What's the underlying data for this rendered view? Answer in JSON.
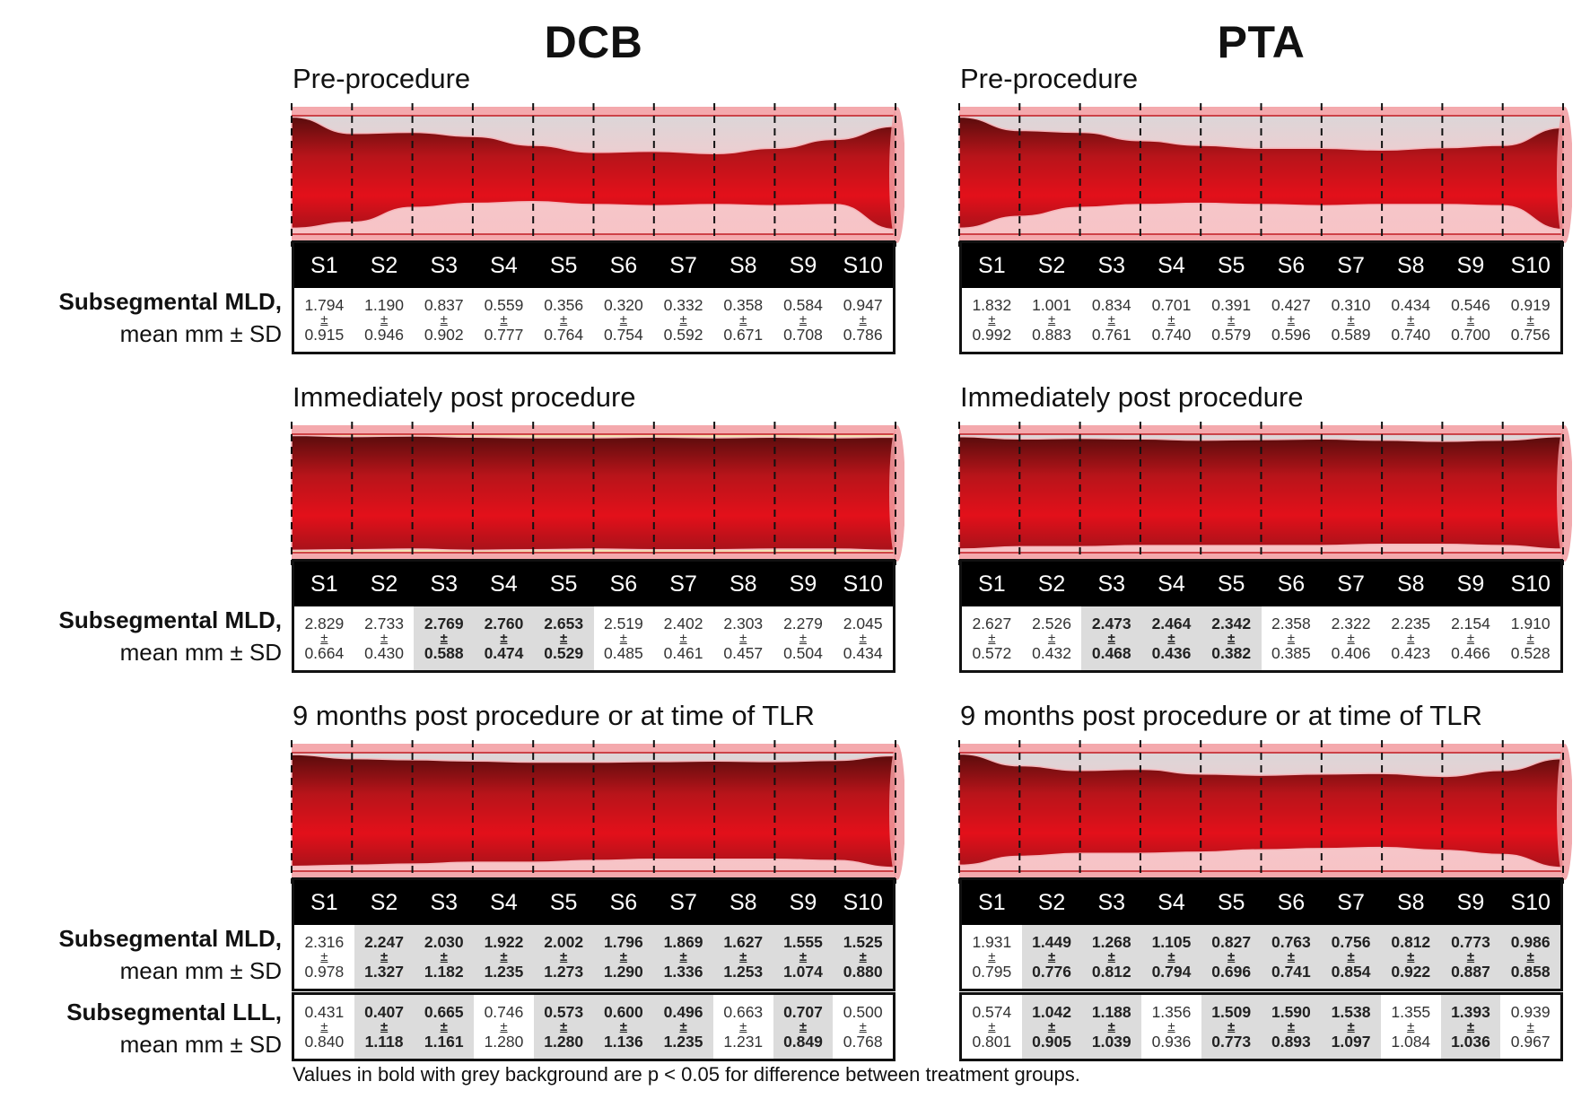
{
  "groups": [
    {
      "title": "DCB"
    },
    {
      "title": "PTA"
    }
  ],
  "stages": [
    {
      "title": "Pre-procedure"
    },
    {
      "title": "Immediately post procedure"
    },
    {
      "title": "9 months post procedure or at time of TLR"
    }
  ],
  "segments": [
    "S1",
    "S2",
    "S3",
    "S4",
    "S5",
    "S6",
    "S7",
    "S8",
    "S9",
    "S10"
  ],
  "pm_symbol": "±",
  "row_labels": {
    "mld": {
      "line1": "Subsegmental MLD,",
      "line2": "mean mm ± SD"
    },
    "lll": {
      "line1": "Subsegmental LLL,",
      "line2": "mean mm ± SD"
    }
  },
  "tables": {
    "DCB": {
      "pre_mld": [
        {
          "mean": "1.794",
          "sd": "0.915",
          "sig": false
        },
        {
          "mean": "1.190",
          "sd": "0.946",
          "sig": false
        },
        {
          "mean": "0.837",
          "sd": "0.902",
          "sig": false
        },
        {
          "mean": "0.559",
          "sd": "0.777",
          "sig": false
        },
        {
          "mean": "0.356",
          "sd": "0.764",
          "sig": false
        },
        {
          "mean": "0.320",
          "sd": "0.754",
          "sig": false
        },
        {
          "mean": "0.332",
          "sd": "0.592",
          "sig": false
        },
        {
          "mean": "0.358",
          "sd": "0.671",
          "sig": false
        },
        {
          "mean": "0.584",
          "sd": "0.708",
          "sig": false
        },
        {
          "mean": "0.947",
          "sd": "0.786",
          "sig": false
        }
      ],
      "post_mld": [
        {
          "mean": "2.829",
          "sd": "0.664",
          "sig": false
        },
        {
          "mean": "2.733",
          "sd": "0.430",
          "sig": false
        },
        {
          "mean": "2.769",
          "sd": "0.588",
          "sig": true
        },
        {
          "mean": "2.760",
          "sd": "0.474",
          "sig": true
        },
        {
          "mean": "2.653",
          "sd": "0.529",
          "sig": true
        },
        {
          "mean": "2.519",
          "sd": "0.485",
          "sig": false
        },
        {
          "mean": "2.402",
          "sd": "0.461",
          "sig": false
        },
        {
          "mean": "2.303",
          "sd": "0.457",
          "sig": false
        },
        {
          "mean": "2.279",
          "sd": "0.504",
          "sig": false
        },
        {
          "mean": "2.045",
          "sd": "0.434",
          "sig": false
        }
      ],
      "nine_mld": [
        {
          "mean": "2.316",
          "sd": "0.978",
          "sig": false
        },
        {
          "mean": "2.247",
          "sd": "1.327",
          "sig": true
        },
        {
          "mean": "2.030",
          "sd": "1.182",
          "sig": true
        },
        {
          "mean": "1.922",
          "sd": "1.235",
          "sig": true
        },
        {
          "mean": "2.002",
          "sd": "1.273",
          "sig": true
        },
        {
          "mean": "1.796",
          "sd": "1.290",
          "sig": true
        },
        {
          "mean": "1.869",
          "sd": "1.336",
          "sig": true
        },
        {
          "mean": "1.627",
          "sd": "1.253",
          "sig": true
        },
        {
          "mean": "1.555",
          "sd": "1.074",
          "sig": true
        },
        {
          "mean": "1.525",
          "sd": "0.880",
          "sig": true
        }
      ],
      "nine_lll": [
        {
          "mean": "0.431",
          "sd": "0.840",
          "sig": false
        },
        {
          "mean": "0.407",
          "sd": "1.118",
          "sig": true
        },
        {
          "mean": "0.665",
          "sd": "1.161",
          "sig": true
        },
        {
          "mean": "0.746",
          "sd": "1.280",
          "sig": false
        },
        {
          "mean": "0.573",
          "sd": "1.280",
          "sig": true
        },
        {
          "mean": "0.600",
          "sd": "1.136",
          "sig": true
        },
        {
          "mean": "0.496",
          "sd": "1.235",
          "sig": true
        },
        {
          "mean": "0.663",
          "sd": "1.231",
          "sig": false
        },
        {
          "mean": "0.707",
          "sd": "0.849",
          "sig": true
        },
        {
          "mean": "0.500",
          "sd": "0.768",
          "sig": false
        }
      ]
    },
    "PTA": {
      "pre_mld": [
        {
          "mean": "1.832",
          "sd": "0.992",
          "sig": false
        },
        {
          "mean": "1.001",
          "sd": "0.883",
          "sig": false
        },
        {
          "mean": "0.834",
          "sd": "0.761",
          "sig": false
        },
        {
          "mean": "0.701",
          "sd": "0.740",
          "sig": false
        },
        {
          "mean": "0.391",
          "sd": "0.579",
          "sig": false
        },
        {
          "mean": "0.427",
          "sd": "0.596",
          "sig": false
        },
        {
          "mean": "0.310",
          "sd": "0.589",
          "sig": false
        },
        {
          "mean": "0.434",
          "sd": "0.740",
          "sig": false
        },
        {
          "mean": "0.546",
          "sd": "0.700",
          "sig": false
        },
        {
          "mean": "0.919",
          "sd": "0.756",
          "sig": false
        }
      ],
      "post_mld": [
        {
          "mean": "2.627",
          "sd": "0.572",
          "sig": false
        },
        {
          "mean": "2.526",
          "sd": "0.432",
          "sig": false
        },
        {
          "mean": "2.473",
          "sd": "0.468",
          "sig": true
        },
        {
          "mean": "2.464",
          "sd": "0.436",
          "sig": true
        },
        {
          "mean": "2.342",
          "sd": "0.382",
          "sig": true
        },
        {
          "mean": "2.358",
          "sd": "0.385",
          "sig": false
        },
        {
          "mean": "2.322",
          "sd": "0.406",
          "sig": false
        },
        {
          "mean": "2.235",
          "sd": "0.423",
          "sig": false
        },
        {
          "mean": "2.154",
          "sd": "0.466",
          "sig": false
        },
        {
          "mean": "1.910",
          "sd": "0.528",
          "sig": false
        }
      ],
      "nine_mld": [
        {
          "mean": "1.931",
          "sd": "0.795",
          "sig": false
        },
        {
          "mean": "1.449",
          "sd": "0.776",
          "sig": true
        },
        {
          "mean": "1.268",
          "sd": "0.812",
          "sig": true
        },
        {
          "mean": "1.105",
          "sd": "0.794",
          "sig": true
        },
        {
          "mean": "0.827",
          "sd": "0.696",
          "sig": true
        },
        {
          "mean": "0.763",
          "sd": "0.741",
          "sig": true
        },
        {
          "mean": "0.756",
          "sd": "0.854",
          "sig": true
        },
        {
          "mean": "0.812",
          "sd": "0.922",
          "sig": true
        },
        {
          "mean": "0.773",
          "sd": "0.887",
          "sig": true
        },
        {
          "mean": "0.986",
          "sd": "0.858",
          "sig": true
        }
      ],
      "nine_lll": [
        {
          "mean": "0.574",
          "sd": "0.801",
          "sig": false
        },
        {
          "mean": "1.042",
          "sd": "0.905",
          "sig": true
        },
        {
          "mean": "1.188",
          "sd": "1.039",
          "sig": true
        },
        {
          "mean": "1.356",
          "sd": "0.936",
          "sig": false
        },
        {
          "mean": "1.509",
          "sd": "0.773",
          "sig": true
        },
        {
          "mean": "1.590",
          "sd": "0.893",
          "sig": true
        },
        {
          "mean": "1.538",
          "sd": "1.097",
          "sig": true
        },
        {
          "mean": "1.355",
          "sd": "1.084",
          "sig": false
        },
        {
          "mean": "1.393",
          "sd": "1.036",
          "sig": true
        },
        {
          "mean": "0.939",
          "sd": "0.967",
          "sig": false
        }
      ]
    }
  },
  "footnote": "Values in bold with grey background are p < 0.05 for difference between treatment groups.",
  "colors": {
    "lumen": "#d7141a",
    "lumen_dark": "#7a0f0f",
    "vessel_wall": "#f6c6c8",
    "vessel_rim": "#f28a90",
    "plaque": "#f7d3d5",
    "significant_bg": "#dcdcdc",
    "header_bg": "#000000"
  }
}
